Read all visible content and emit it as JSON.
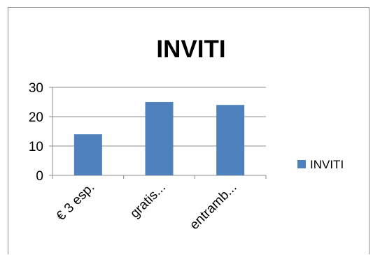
{
  "chart_data": {
    "type": "bar",
    "title": "INVITI",
    "categories": [
      "€ 3 esp.",
      "gratis...",
      "entramb..."
    ],
    "series": [
      {
        "name": "INVITI",
        "values": [
          14,
          25,
          24
        ],
        "color": "#4f81bd"
      }
    ],
    "ylim": [
      0,
      30
    ],
    "yticks": [
      0,
      10,
      20,
      30
    ],
    "grid": true,
    "legend": "right",
    "xlabel": "",
    "ylabel": ""
  }
}
